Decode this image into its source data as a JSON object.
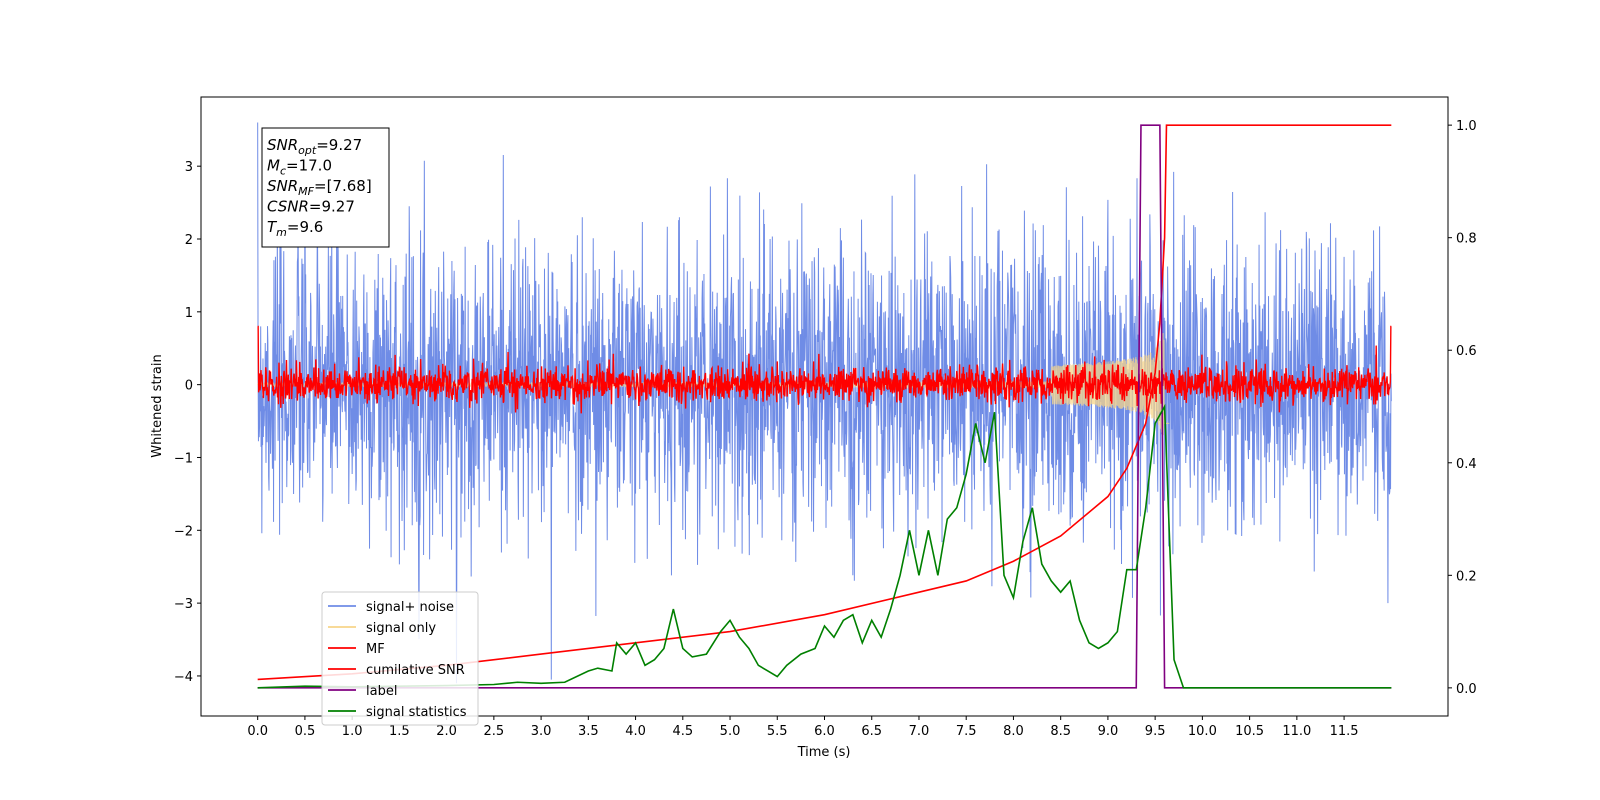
{
  "chart_data": {
    "type": "line",
    "xlabel": "Time (s)",
    "ylabel": "Whitened strain",
    "xlim": [
      -0.6,
      12.6
    ],
    "ylim": [
      -4.55,
      3.95
    ],
    "y2lim": [
      -0.05,
      1.05
    ],
    "x_ticks": [
      "0.0",
      "0.5",
      "1.0",
      "1.5",
      "2.0",
      "2.5",
      "3.0",
      "3.5",
      "4.0",
      "4.5",
      "5.0",
      "5.5",
      "6.0",
      "6.5",
      "7.0",
      "7.5",
      "8.0",
      "8.5",
      "9.0",
      "9.5",
      "10.0",
      "10.5",
      "11.0",
      "11.5"
    ],
    "y_ticks": [
      "3",
      "2",
      "1",
      "0",
      "−1",
      "−2",
      "−3",
      "−4"
    ],
    "y2_ticks": [
      "1.0",
      "0.8",
      "0.6",
      "0.4",
      "0.2",
      "0.0"
    ],
    "annotation": {
      "lines": [
        {
          "base": "SNR",
          "sub": "opt",
          "value": "=9.27"
        },
        {
          "base": "M",
          "sub": "c",
          "value": "=17.0"
        },
        {
          "base": "SNR",
          "sub": "MF",
          "value": "=[7.68]"
        },
        {
          "base": "CSNR",
          "sub": "",
          "value": "=9.27"
        },
        {
          "base": "T",
          "sub": "m",
          "value": "=9.6"
        }
      ]
    },
    "legend": {
      "placement": "lower-left",
      "entries": [
        "signal+ noise",
        "signal only",
        "MF",
        "cumilative SNR",
        "label",
        "signal statistics"
      ]
    },
    "series": [
      {
        "name": "signal+ noise",
        "color": "#6f8ce6",
        "axis": "left",
        "kind": "noise",
        "x_range": [
          0,
          12
        ],
        "amplitude": 1.0
      },
      {
        "name": "signal only",
        "color": "#f7d58a",
        "axis": "left",
        "kind": "chirp",
        "peak_time": 9.6,
        "peak_amplitude": 0.75
      },
      {
        "name": "MF",
        "color": "#ff0000",
        "axis": "left",
        "kind": "noise",
        "x_range": [
          0,
          12
        ],
        "amplitude": 0.12
      },
      {
        "name": "cumilative SNR",
        "color": "#ff0000",
        "axis": "right",
        "x": [
          0.0,
          1.0,
          2.0,
          3.0,
          4.0,
          5.0,
          6.0,
          7.0,
          7.5,
          8.0,
          8.5,
          9.0,
          9.2,
          9.4,
          9.5,
          9.55,
          9.6,
          9.62,
          12.0
        ],
        "values": [
          0.015,
          0.025,
          0.04,
          0.06,
          0.08,
          0.1,
          0.13,
          0.17,
          0.19,
          0.225,
          0.27,
          0.34,
          0.39,
          0.47,
          0.56,
          0.65,
          0.8,
          1.0,
          1.0
        ]
      },
      {
        "name": "label",
        "color": "#800080",
        "axis": "right",
        "x": [
          0.0,
          9.3,
          9.35,
          9.55,
          9.6,
          12.0
        ],
        "values": [
          0.0,
          0.0,
          1.0,
          1.0,
          0.0,
          0.0
        ]
      },
      {
        "name": "signal statistics",
        "color": "#008000",
        "axis": "right",
        "x": [
          0.0,
          0.5,
          1.0,
          1.5,
          2.0,
          2.5,
          2.75,
          3.0,
          3.25,
          3.5,
          3.6,
          3.75,
          3.8,
          3.9,
          4.0,
          4.1,
          4.2,
          4.3,
          4.4,
          4.5,
          4.6,
          4.75,
          4.9,
          5.0,
          5.1,
          5.2,
          5.3,
          5.4,
          5.5,
          5.6,
          5.75,
          5.9,
          6.0,
          6.1,
          6.2,
          6.3,
          6.4,
          6.5,
          6.6,
          6.7,
          6.8,
          6.9,
          7.0,
          7.1,
          7.2,
          7.3,
          7.4,
          7.5,
          7.6,
          7.7,
          7.8,
          7.9,
          8.0,
          8.1,
          8.2,
          8.3,
          8.4,
          8.5,
          8.6,
          8.7,
          8.8,
          8.9,
          9.0,
          9.1,
          9.2,
          9.3,
          9.4,
          9.5,
          9.6,
          9.7,
          9.8,
          10.0,
          12.0
        ],
        "values": [
          0.0,
          0.003,
          0.002,
          0.003,
          0.004,
          0.006,
          0.01,
          0.008,
          0.01,
          0.03,
          0.035,
          0.03,
          0.08,
          0.06,
          0.08,
          0.04,
          0.05,
          0.07,
          0.14,
          0.07,
          0.055,
          0.06,
          0.1,
          0.12,
          0.09,
          0.07,
          0.04,
          0.03,
          0.02,
          0.04,
          0.06,
          0.07,
          0.11,
          0.09,
          0.12,
          0.13,
          0.08,
          0.12,
          0.09,
          0.14,
          0.2,
          0.28,
          0.2,
          0.28,
          0.2,
          0.3,
          0.32,
          0.38,
          0.47,
          0.4,
          0.49,
          0.2,
          0.16,
          0.26,
          0.32,
          0.22,
          0.19,
          0.17,
          0.19,
          0.12,
          0.08,
          0.07,
          0.08,
          0.1,
          0.21,
          0.21,
          0.32,
          0.47,
          0.5,
          0.05,
          0.0,
          0.0,
          0.0
        ]
      }
    ]
  }
}
